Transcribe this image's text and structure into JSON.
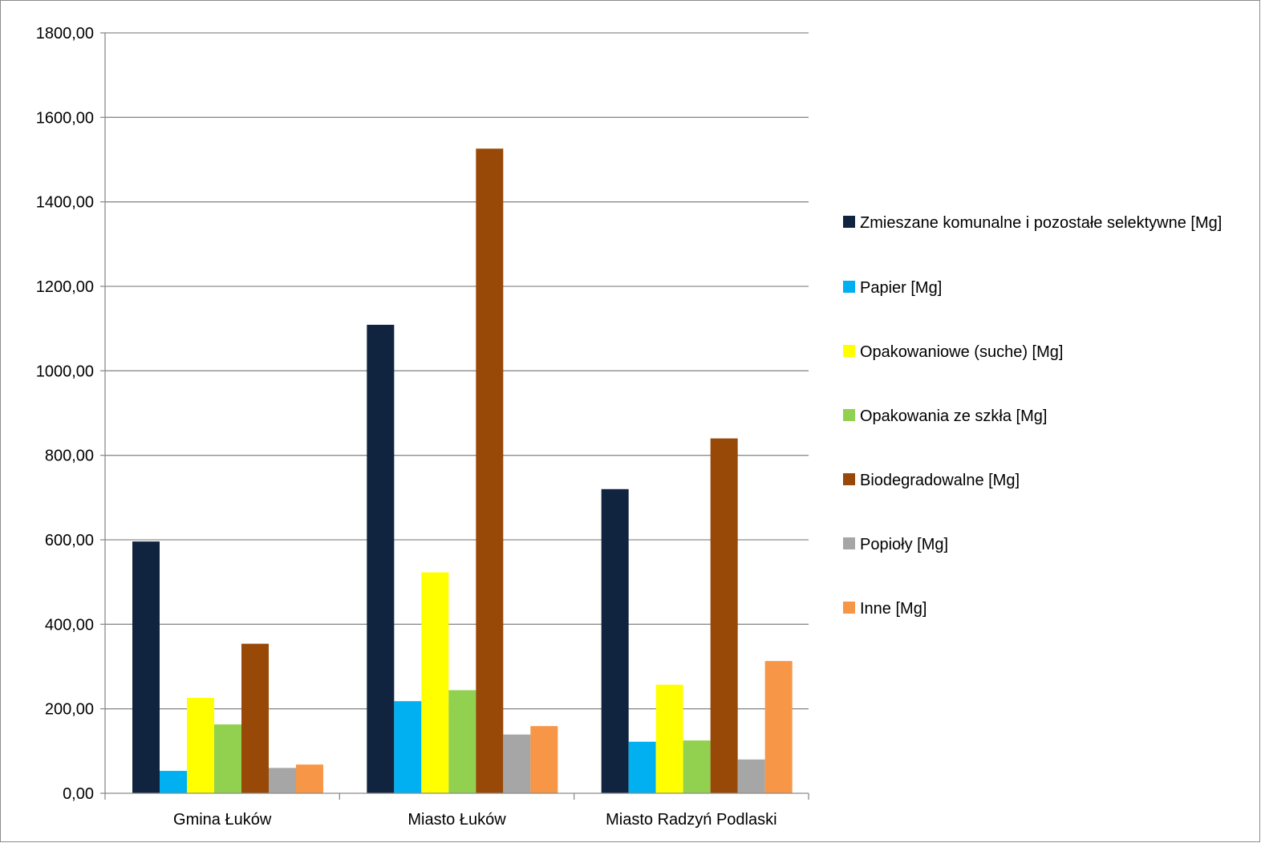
{
  "chart_data": {
    "type": "bar",
    "title": "",
    "xlabel": "",
    "ylabel": "",
    "ylim": [
      0,
      1800
    ],
    "y_ticks": [
      0,
      200,
      400,
      600,
      800,
      1000,
      1200,
      1400,
      1600,
      1800
    ],
    "y_tick_labels": [
      "0,00",
      "200,00",
      "400,00",
      "600,00",
      "800,00",
      "1000,00",
      "1200,00",
      "1400,00",
      "1600,00",
      "1800,00"
    ],
    "grid": true,
    "legend_position": "right",
    "categories": [
      "Gmina Łuków",
      "Miasto Łuków",
      "Miasto Radzyń Podlaski"
    ],
    "series": [
      {
        "name": "Zmieszane komunalne i pozostałe selektywne [Mg]",
        "color": "#10243f",
        "values": [
          596,
          1109,
          720
        ]
      },
      {
        "name": "Papier [Mg]",
        "color": "#00b0f0",
        "values": [
          53,
          218,
          122
        ]
      },
      {
        "name": "Opakowaniowe (suche) [Mg]",
        "color": "#ffff00",
        "values": [
          226,
          523,
          257
        ]
      },
      {
        "name": "Opakowania ze szkła [Mg]",
        "color": "#92d050",
        "values": [
          163,
          244,
          125
        ]
      },
      {
        "name": "Biodegradowalne [Mg]",
        "color": "#984807",
        "values": [
          354,
          1526,
          840
        ]
      },
      {
        "name": "Popioły [Mg]",
        "color": "#a6a6a6",
        "values": [
          60,
          139,
          80
        ]
      },
      {
        "name": "Inne [Mg]",
        "color": "#f79646",
        "values": [
          68,
          159,
          313
        ]
      }
    ]
  }
}
